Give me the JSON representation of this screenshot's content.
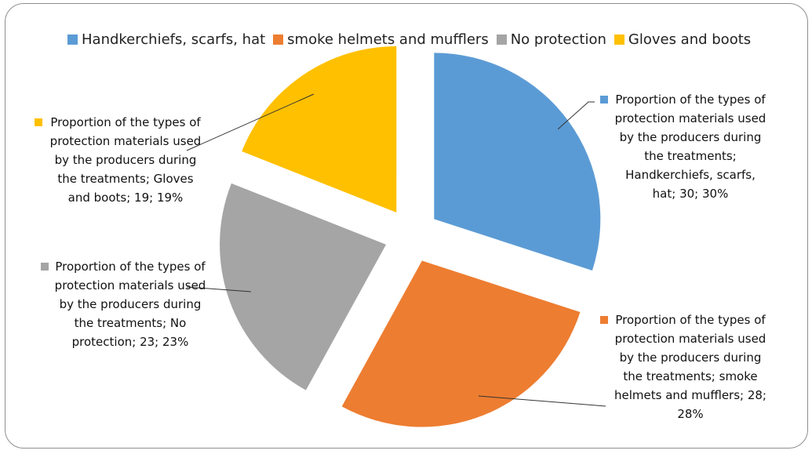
{
  "chart_data": {
    "type": "pie",
    "exploded": true,
    "legend_position": "top",
    "categories": [
      "Handkerchiefs, scarfs, hat",
      "smoke helmets and mufflers",
      "No protection",
      "Gloves and boots"
    ],
    "values": [
      30,
      28,
      23,
      19
    ],
    "percent_labels": [
      "30%",
      "28%",
      "23%",
      "19%"
    ],
    "series_name": "Proportion of the types of protection materials used by the producers during the treatments",
    "colors": [
      "#5B9BD5",
      "#ED7D31",
      "#A5A5A5",
      "#FFC000"
    ],
    "data_labels": [
      "Proportion of the types of protection materials used by the producers during the treatments; Handkerchiefs, scarfs, hat; 30; 30%",
      "Proportion of the types of protection materials used by the producers during the treatments; smoke helmets and mufflers; 28; 28%",
      "Proportion of the types of protection materials used by the producers during the treatments; No protection; 23; 23%",
      "Proportion of the types of protection materials used by the producers during the treatments; Gloves and boots; 19; 19%"
    ]
  }
}
